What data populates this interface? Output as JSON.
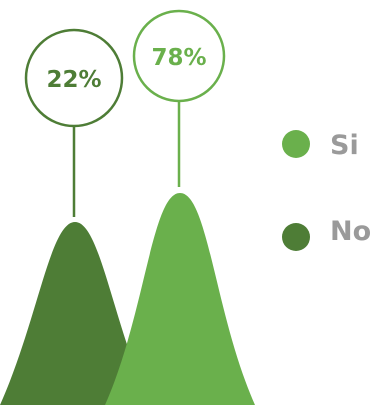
{
  "chart_data": {
    "type": "area",
    "series": [
      {
        "name": "No",
        "value": 22,
        "label": "22%",
        "color": "#4e7d36"
      },
      {
        "name": "Si",
        "value": 78,
        "label": "78%",
        "color": "#6ab04c"
      }
    ],
    "legend": {
      "placement": "right",
      "items": [
        {
          "label": "Si",
          "color": "#6ab04c"
        },
        {
          "label": "No",
          "color": "#4e7d36"
        }
      ]
    }
  }
}
